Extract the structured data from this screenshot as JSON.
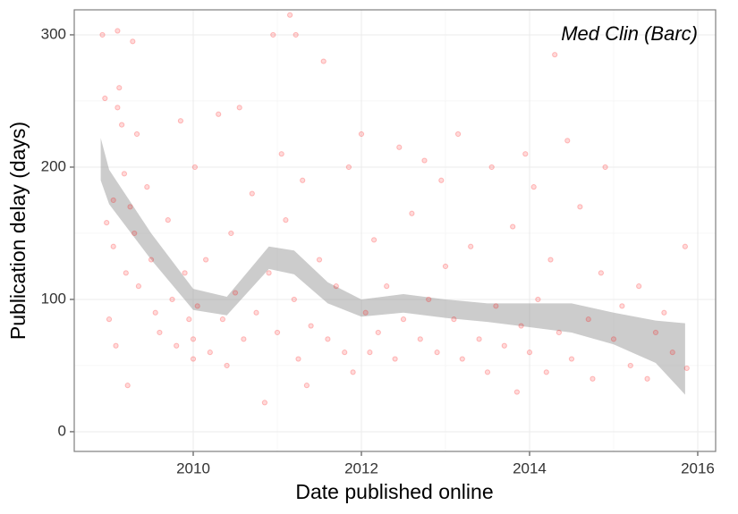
{
  "chart_data": {
    "type": "scatter",
    "annotation": "Med Clin (Barc)",
    "xlabel": "Date published online",
    "ylabel": "Publication delay (days)",
    "xlim": [
      2008.585,
      2016.213
    ],
    "xticks": [
      2010,
      2012,
      2014,
      2016
    ],
    "ylim": [
      -14.9,
      318.9
    ],
    "yticks": [
      0,
      100,
      200,
      300
    ],
    "grid": true,
    "color": "#ff0000",
    "point_alpha": 0.15,
    "x": [
      2008.92,
      2008.95,
      2008.97,
      2009.0,
      2009.05,
      2009.1,
      2009.12,
      2009.15,
      2009.18,
      2009.2,
      2009.22,
      2009.25,
      2009.28,
      2009.3,
      2009.33,
      2009.35,
      2009.1,
      2009.08,
      2009.05,
      2009.45,
      2009.5,
      2009.55,
      2009.6,
      2009.7,
      2009.75,
      2009.8,
      2009.85,
      2009.9,
      2009.95,
      2010.0,
      2010.0,
      2010.02,
      2010.05,
      2010.15,
      2010.2,
      2010.3,
      2010.35,
      2010.4,
      2010.45,
      2010.5,
      2010.55,
      2010.6,
      2010.7,
      2010.75,
      2010.85,
      2010.9,
      2010.95,
      2011.0,
      2011.05,
      2011.1,
      2011.15,
      2011.2,
      2011.22,
      2011.25,
      2011.3,
      2011.35,
      2011.4,
      2011.5,
      2011.55,
      2011.6,
      2011.7,
      2011.8,
      2011.85,
      2011.9,
      2012.0,
      2012.05,
      2012.1,
      2012.15,
      2012.2,
      2012.3,
      2012.4,
      2012.45,
      2012.5,
      2012.6,
      2012.7,
      2012.75,
      2012.8,
      2012.9,
      2012.95,
      2013.0,
      2013.1,
      2013.15,
      2013.2,
      2013.3,
      2013.4,
      2013.5,
      2013.55,
      2013.6,
      2013.7,
      2013.8,
      2013.85,
      2013.9,
      2013.95,
      2014.0,
      2014.05,
      2014.1,
      2014.2,
      2014.25,
      2014.3,
      2014.35,
      2014.45,
      2014.5,
      2014.6,
      2014.7,
      2014.75,
      2014.85,
      2014.9,
      2015.0,
      2015.1,
      2015.2,
      2015.3,
      2015.4,
      2015.5,
      2015.6,
      2015.7,
      2015.85,
      2015.87
    ],
    "values": [
      300,
      252,
      158,
      85,
      175,
      303,
      260,
      232,
      195,
      120,
      35,
      170,
      295,
      150,
      225,
      110,
      245,
      65,
      140,
      185,
      130,
      90,
      75,
      160,
      100,
      65,
      235,
      120,
      85,
      70,
      55,
      200,
      95,
      130,
      60,
      240,
      85,
      50,
      150,
      105,
      245,
      70,
      180,
      90,
      22,
      120,
      300,
      75,
      210,
      160,
      315,
      100,
      300,
      55,
      190,
      35,
      80,
      130,
      280,
      70,
      110,
      60,
      200,
      45,
      225,
      90,
      60,
      145,
      75,
      110,
      55,
      215,
      85,
      165,
      70,
      205,
      100,
      60,
      190,
      125,
      85,
      225,
      55,
      140,
      70,
      45,
      200,
      95,
      65,
      155,
      30,
      80,
      210,
      60,
      185,
      100,
      45,
      130,
      285,
      75,
      220,
      55,
      170,
      85,
      40,
      120,
      200,
      70,
      95,
      50,
      110,
      40,
      75,
      90,
      60,
      140,
      48
    ],
    "smooth": {
      "color": "#999999",
      "x": [
        2008.9,
        2009.0,
        2009.5,
        2010.0,
        2010.4,
        2010.9,
        2011.2,
        2011.6,
        2012.0,
        2012.5,
        2013.0,
        2013.5,
        2014.0,
        2014.5,
        2015.0,
        2015.5,
        2015.85
      ],
      "lower": [
        190,
        172,
        130,
        92,
        88,
        123,
        119,
        97,
        87,
        90,
        86,
        83,
        79,
        75,
        66,
        52,
        28
      ],
      "upper": [
        222,
        198,
        150,
        108,
        102,
        140,
        137,
        113,
        100,
        104,
        100,
        97,
        97,
        97,
        90,
        84,
        82
      ]
    }
  }
}
